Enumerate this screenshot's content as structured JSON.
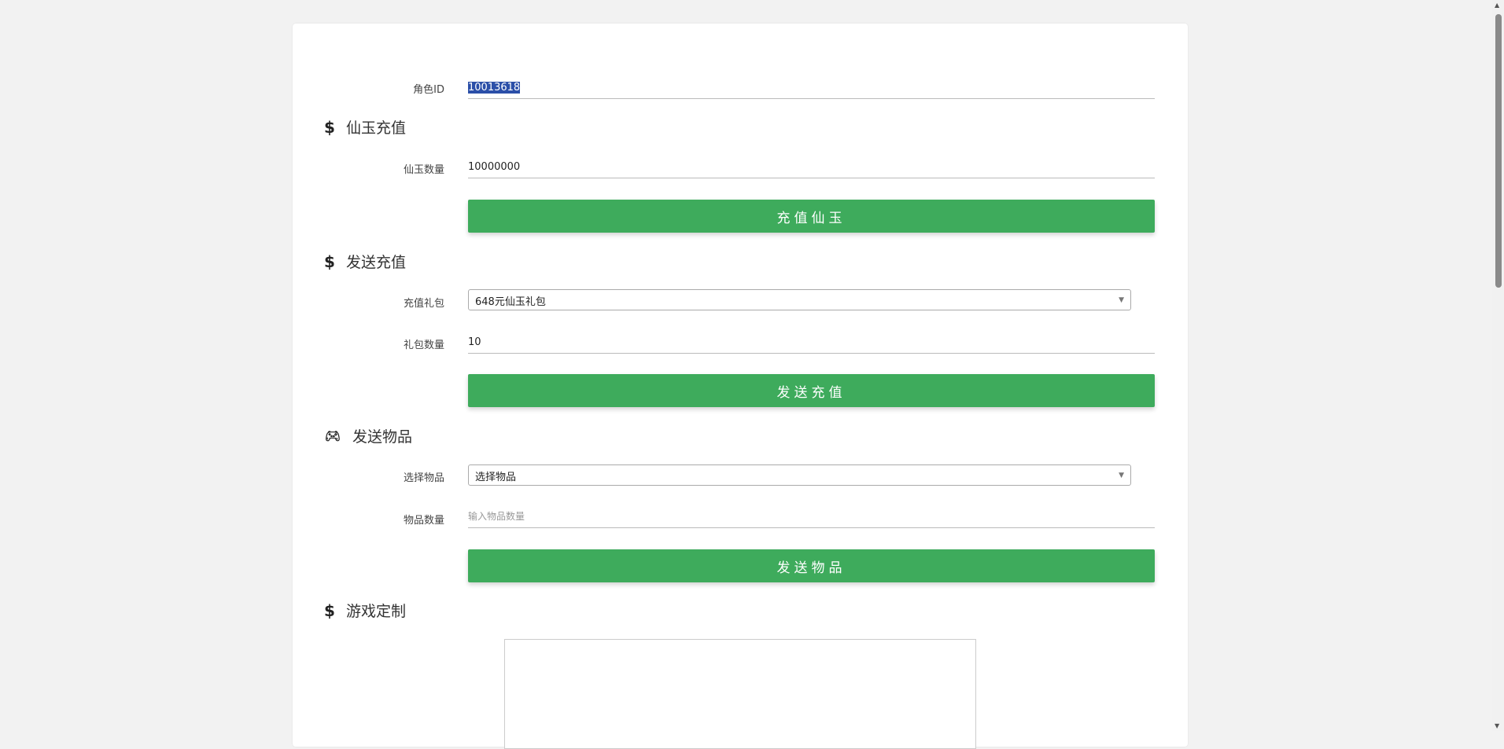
{
  "role": {
    "label": "角色ID",
    "value": "10013618"
  },
  "jade": {
    "heading": "仙玉充值",
    "icon": "dollar-icon",
    "amount_label": "仙玉数量",
    "amount_value": "10000000",
    "button": "充值仙玉"
  },
  "recharge": {
    "heading": "发送充值",
    "icon": "dollar-icon",
    "package_label": "充值礼包",
    "package_selected": "648元仙玉礼包",
    "count_label": "礼包数量",
    "count_value": "10",
    "button": "发送充值"
  },
  "items": {
    "heading": "发送物品",
    "icon": "gamepad-icon",
    "select_label": "选择物品",
    "select_selected": "选择物品",
    "count_label": "物品数量",
    "count_placeholder": "输入物品数量",
    "button": "发送物品"
  },
  "custom": {
    "heading": "游戏定制",
    "icon": "dollar-icon"
  },
  "colors": {
    "accent": "#3eab5c",
    "background": "#f2f2f2"
  }
}
